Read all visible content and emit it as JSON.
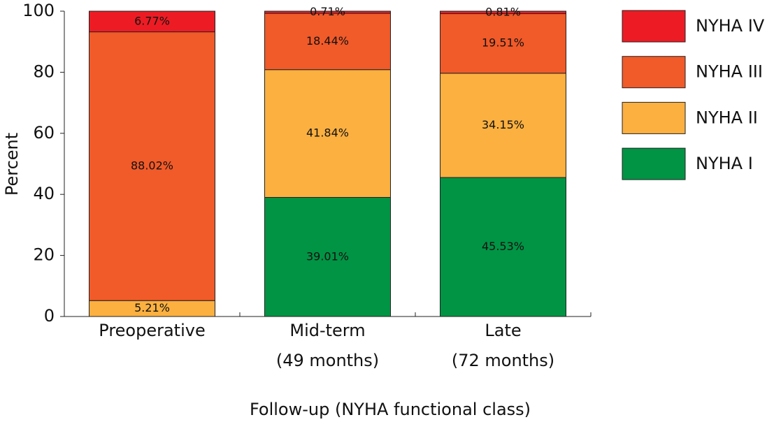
{
  "chart_data": {
    "type": "stacked_bar",
    "x_label": "Follow-up (NYHA functional class)",
    "y_label": "Percent",
    "categories": [
      [
        "Preoperative"
      ],
      [
        "Mid-term",
        "(49 months)"
      ],
      [
        "Late",
        "(72 months)"
      ]
    ],
    "series": [
      {
        "name": "NYHA I",
        "color": "#009444",
        "values": [
          null,
          39.01,
          45.53
        ],
        "value_labels": [
          null,
          "39.01%",
          "45.53%"
        ]
      },
      {
        "name": "NYHA II",
        "color": "#fbb040",
        "values": [
          5.21,
          41.84,
          34.15
        ],
        "value_labels": [
          "5.21%",
          "41.84%",
          "34.15%"
        ]
      },
      {
        "name": "NYHA III",
        "color": "#f15a29",
        "values": [
          88.02,
          18.44,
          19.51
        ],
        "value_labels": [
          "88.02%",
          "18.44%",
          "19.51%"
        ]
      },
      {
        "name": "NYHA IV",
        "color": "#ed1c24",
        "values": [
          6.77,
          0.71,
          0.81
        ],
        "value_labels": [
          "6.77%",
          "0.71%",
          "0.81%"
        ]
      }
    ],
    "ylim": [
      0,
      100
    ],
    "yticks": [
      0,
      20,
      40,
      60,
      80,
      100
    ],
    "legend": "right"
  }
}
